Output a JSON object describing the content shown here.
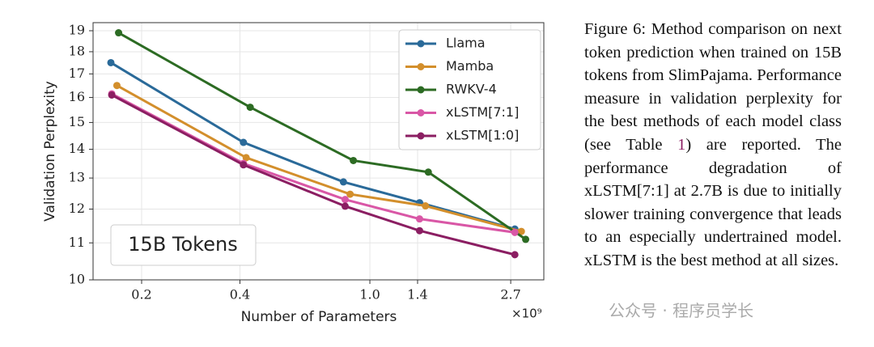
{
  "chart_data": {
    "type": "line",
    "ylabel": "Validation Perplexity",
    "xlabel": "Number of Parameters",
    "x_offset_label": "×10⁹",
    "annotation": "15B Tokens",
    "xscale": "log",
    "yscale": "log",
    "grid": true,
    "legend": "upper right",
    "xlim": [
      0.142,
      3.41
    ],
    "ylim": [
      10,
      19.4
    ],
    "xticks": [
      0.2,
      0.4,
      {
        "value": 1,
        "label": "1.0"
      },
      1.4,
      2.7
    ],
    "yticks": [
      10,
      11,
      12,
      13,
      14,
      15,
      16,
      17,
      18,
      19
    ],
    "series": [
      {
        "name": "Llama",
        "color": "#2a6a99",
        "x": [
          0.161,
          0.41,
          0.83,
          1.42,
          2.78
        ],
        "values": [
          17.5,
          14.25,
          12.87,
          12.2,
          11.4
        ]
      },
      {
        "name": "Mamba",
        "color": "#d38f2c",
        "x": [
          0.168,
          0.418,
          0.87,
          1.48,
          2.91
        ],
        "values": [
          16.5,
          13.7,
          12.47,
          12.1,
          11.33
        ]
      },
      {
        "name": "RWKV-4",
        "color": "#2c6b23",
        "x": [
          0.17,
          0.43,
          0.89,
          1.51,
          3.0
        ],
        "values": [
          18.9,
          15.6,
          13.6,
          13.2,
          11.1
        ]
      },
      {
        "name": "xLSTM[7:1]",
        "color": "#d957a6",
        "x": [
          0.162,
          0.41,
          0.84,
          1.42,
          2.78
        ],
        "values": [
          16.15,
          13.5,
          12.3,
          11.7,
          11.3
        ]
      },
      {
        "name": "xLSTM[1:0]",
        "color": "#8b1e62",
        "x": [
          0.162,
          0.41,
          0.84,
          1.42,
          2.78
        ],
        "values": [
          16.1,
          13.45,
          12.09,
          11.35,
          10.67
        ]
      }
    ]
  },
  "caption": {
    "text1": "Figure 6: Method comparison on next token prediction when trained on 15B tokens from SlimPajama. Performance measure in validation perplexity for the best methods of each model class (see Table ",
    "ref": "1",
    "text2": ") are reported. The performance degradation of xLSTM[7:1] at 2.7B is due to initially slower training convergence that leads to an especially undertrained model. xLSTM is the best method at all sizes."
  },
  "watermark": "公众号 · 程序员学长"
}
